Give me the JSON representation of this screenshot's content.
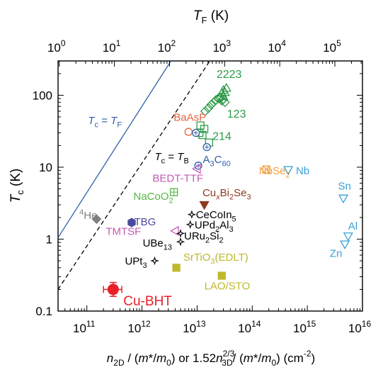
{
  "chart_data": {
    "type": "scatter",
    "x_scale": "log",
    "y_scale": "log",
    "xlim": [
      30000000000.0,
      1e+16
    ],
    "ylim": [
      0.1,
      300
    ],
    "top_xlim": [
      1,
      100000
    ],
    "grid": false,
    "legend": "none",
    "x_ticks": [
      {
        "v": 100000000000.0,
        "base": "10",
        "exp": "11"
      },
      {
        "v": 1000000000000.0,
        "base": "10",
        "exp": "12"
      },
      {
        "v": 10000000000000.0,
        "base": "10",
        "exp": "13"
      },
      {
        "v": 100000000000000.0,
        "base": "10",
        "exp": "14"
      },
      {
        "v": 1000000000000000.0,
        "base": "10",
        "exp": "15"
      },
      {
        "v": 1e+16,
        "base": "10",
        "exp": "16"
      }
    ],
    "top_ticks": [
      {
        "v": 1,
        "base": "10",
        "exp": "0"
      },
      {
        "v": 10,
        "base": "10",
        "exp": "1"
      },
      {
        "v": 100,
        "base": "10",
        "exp": "2"
      },
      {
        "v": 1000,
        "base": "10",
        "exp": "3"
      },
      {
        "v": 10000,
        "base": "10",
        "exp": "4"
      },
      {
        "v": 100000,
        "base": "10",
        "exp": "5"
      }
    ],
    "y_ticks": [
      {
        "v": 0.1,
        "label": "0.1"
      },
      {
        "v": 1,
        "label": "1"
      },
      {
        "v": 10,
        "label": "10"
      },
      {
        "v": 100,
        "label": "100"
      }
    ],
    "xlabel": {
      "n": "n",
      "sub1": "2D",
      "a": " / (",
      "m": "m",
      "b": "*/",
      "m0": "m",
      "sub0": "0",
      "c": ") or 1.52",
      "n2": "n",
      "sup": "2/3",
      "sub3": "3D",
      "d": "/ (",
      "m_b": "m",
      "e": "*/",
      "m0_b": "m",
      "sub0_b": "0",
      "f": ") (cm",
      "sup2": "-2",
      "g": ")"
    },
    "ylabel": {
      "t": "T",
      "sub": "c",
      "unit": " (K)"
    },
    "top_label": {
      "t": "T",
      "sub": "F",
      "unit": " (K)"
    },
    "lines": [
      {
        "lbl_t": "T",
        "lbl_sub": "c",
        "eq": " = ",
        "rhs_t": "T",
        "rhs_sub": "F",
        "color": "#2f5fa8",
        "dash": "none",
        "x0": 30000000000.0,
        "y0": 1.05,
        "x1": 3350000000000.0,
        "y1": 300
      },
      {
        "lbl_t": "T",
        "lbl_sub": "c",
        "eq": " = ",
        "rhs_t": "T",
        "rhs_sub": "B",
        "color": "#000000",
        "dash": "6,4",
        "x0": 30000000000.0,
        "y0": 0.2,
        "x1": 17000000000000.0,
        "y1": 300
      }
    ],
    "series": [
      {
        "name": "2223",
        "color": "#2e9a48",
        "marker": "triangle-up-open",
        "points": [
          [
            28000000000000.0,
            108
          ],
          [
            30000000000000.0,
            118
          ],
          [
            32000000000000.0,
            110
          ],
          [
            34000000000000.0,
            126
          ],
          [
            30000000000000.0,
            96
          ]
        ]
      },
      {
        "name": "123",
        "color": "#2e9a48",
        "marker": "diamond-open",
        "points": [
          [
            14000000000000.0,
            60
          ],
          [
            16000000000000.0,
            66
          ],
          [
            18000000000000.0,
            74
          ],
          [
            20000000000000.0,
            80
          ],
          [
            22000000000000.0,
            86
          ],
          [
            24000000000000.0,
            90
          ],
          [
            26000000000000.0,
            92
          ],
          [
            28000000000000.0,
            84
          ],
          [
            30000000000000.0,
            88
          ],
          [
            32000000000000.0,
            80
          ]
        ]
      },
      {
        "name": "214",
        "color": "#2e9a48",
        "marker": "square-open",
        "points": [
          [
            11500000000000.0,
            38
          ],
          [
            13500000000000.0,
            34
          ],
          [
            16500000000000.0,
            22
          ],
          [
            11000000000000.0,
            30
          ],
          [
            12500000000000.0,
            28
          ]
        ]
      },
      {
        "name": "BaAsP",
        "color": "#e8623d",
        "marker": "circle-open",
        "points": [
          [
            7000000000000.0,
            31
          ]
        ]
      },
      {
        "name": "",
        "color": "#2f5fa8",
        "marker": "circle-plus",
        "points": [
          [
            9500000000000.0,
            30
          ],
          [
            10500000000000.0,
            10.5
          ]
        ]
      },
      {
        "name": "A₃C₆₀",
        "color": "#2f5fa8",
        "marker": "circle-plus",
        "points": [
          [
            15000000000000.0,
            19
          ]
        ]
      },
      {
        "name": "BEDT-TTF",
        "color": "#c45bb4",
        "marker": "triangle-left-open",
        "points": [
          [
            10000000000000.0,
            9.5
          ]
        ]
      },
      {
        "name": "NbSe₂",
        "color": "#f0a040",
        "marker": "square-x",
        "points": [
          [
            180000000000000.0,
            9.3
          ]
        ]
      },
      {
        "name": "Nb",
        "color": "#3aa0d8",
        "marker": "triangle-down-open",
        "points": [
          [
            450000000000000.0,
            9.2
          ]
        ]
      },
      {
        "name": "NaCoO₂",
        "color": "#58b546",
        "marker": "square-plus",
        "points": [
          [
            3800000000000.0,
            4.5
          ]
        ]
      },
      {
        "name": "CuₓBi₂Se₃",
        "color": "#8b3a1f",
        "marker": "triangle-down-filled",
        "points": [
          [
            13500000000000.0,
            3.0
          ]
        ]
      },
      {
        "name": "Sn",
        "color": "#3aa0d8",
        "marker": "triangle-down-open",
        "points": [
          [
            4500000000000000.0,
            3.7
          ]
        ]
      },
      {
        "name": "⁴He",
        "color": "#808080",
        "marker": "diamond-filled",
        "points": [
          [
            150000000000.0,
            1.9
          ]
        ]
      },
      {
        "name": "TBG",
        "color": "#4a4aa0",
        "marker": "hexagon-filled",
        "points": [
          [
            650000000000.0,
            1.7
          ]
        ]
      },
      {
        "name": "CeCoIn₅",
        "color": "#000000",
        "marker": "star4-open",
        "points": [
          [
            8000000000000.0,
            2.2
          ]
        ]
      },
      {
        "name": "UPd₂Al₃",
        "color": "#000000",
        "marker": "star4-open",
        "points": [
          [
            7500000000000.0,
            1.6
          ]
        ]
      },
      {
        "name": "TMTSF",
        "color": "#c45bb4",
        "marker": "triangle-left-open",
        "points": [
          [
            4000000000000.0,
            1.3
          ]
        ]
      },
      {
        "name": "URu₂Si₂",
        "color": "#000000",
        "marker": "star4-open",
        "points": [
          [
            5000000000000.0,
            1.2
          ]
        ]
      },
      {
        "name": "UBe₁₃",
        "color": "#000000",
        "marker": "star4-open",
        "points": [
          [
            5000000000000.0,
            0.92
          ]
        ]
      },
      {
        "name": "Al",
        "color": "#3aa0d8",
        "marker": "triangle-down-open",
        "points": [
          [
            5500000000000000.0,
            1.1
          ]
        ]
      },
      {
        "name": "Zn",
        "color": "#3aa0d8",
        "marker": "triangle-down-open",
        "points": [
          [
            4800000000000000.0,
            0.85
          ]
        ]
      },
      {
        "name": "SrTiO₃(EDLT)",
        "color": "#bfb82b",
        "marker": "square-filled",
        "points": [
          [
            4200000000000.0,
            0.4
          ]
        ]
      },
      {
        "name": "UPt₃",
        "color": "#000000",
        "marker": "star4-open",
        "points": [
          [
            1700000000000.0,
            0.5
          ]
        ]
      },
      {
        "name": "LAO/STO",
        "color": "#bfb82b",
        "marker": "square-filled",
        "points": [
          [
            28000000000000.0,
            0.31
          ]
        ]
      },
      {
        "name": "Cu-BHT",
        "color": "#e8202a",
        "marker": "circle-filled-err",
        "points": [
          [
            300000000000.0,
            0.2
          ]
        ],
        "xerr": [
          200000000000.0,
          430000000000.0
        ],
        "yerr": [
          0.16,
          0.25
        ]
      }
    ],
    "labels": [
      {
        "name": "tc-tf",
        "x": 105000000000.0,
        "y": 40,
        "color": "#2f5fa8",
        "size": 15,
        "parts": [
          [
            "T",
            "it"
          ],
          [
            "c",
            "sub"
          ],
          [
            " = ",
            "n"
          ],
          [
            "T",
            "it"
          ],
          [
            "F",
            "sub"
          ]
        ]
      },
      {
        "name": "tc-tb",
        "x": 1700000000000.0,
        "y": 12.5,
        "color": "#000000",
        "size": 15,
        "parts": [
          [
            "T",
            "it"
          ],
          [
            "c",
            "sub"
          ],
          [
            " = ",
            "n"
          ],
          [
            "T",
            "it"
          ],
          [
            "B",
            "sub"
          ]
        ]
      },
      {
        "name": "2223",
        "x": 22500000000000.0,
        "y": 175,
        "color": "#2e9a48",
        "size": 16,
        "parts": [
          [
            "2223",
            "n"
          ]
        ]
      },
      {
        "name": "123",
        "x": 35000000000000.0,
        "y": 49,
        "color": "#2e9a48",
        "size": 16,
        "parts": [
          [
            "123",
            "n"
          ]
        ]
      },
      {
        "name": "214",
        "x": 19000000000000.0,
        "y": 24,
        "color": "#2e9a48",
        "size": 16,
        "parts": [
          [
            "214",
            "n"
          ]
        ]
      },
      {
        "name": "BaAsP",
        "x": 3750000000000.0,
        "y": 44,
        "color": "#e8623d",
        "size": 15,
        "parts": [
          [
            "BaAsP",
            "n"
          ]
        ]
      },
      {
        "name": "A3C60",
        "x": 12700000000000.0,
        "y": 11.5,
        "color": "#2f5fa8",
        "size": 15,
        "parts": [
          [
            "A",
            "n"
          ],
          [
            "3",
            "sub"
          ],
          [
            "C",
            "n"
          ],
          [
            "60",
            "sub"
          ]
        ]
      },
      {
        "name": "BEDT-TTF",
        "x": 1550000000000.0,
        "y": 6.3,
        "color": "#c45bb4",
        "size": 15,
        "parts": [
          [
            "BEDT-TTF",
            "n"
          ]
        ]
      },
      {
        "name": "NbSe2",
        "x": 133000000000000.0,
        "y": 8.0,
        "color": "#f0a040",
        "size": 15,
        "parts": [
          [
            "NbSe",
            "n"
          ],
          [
            "2",
            "sub"
          ]
        ]
      },
      {
        "name": "Nb",
        "x": 620000000000000.0,
        "y": 8.0,
        "color": "#3aa0d8",
        "size": 15,
        "parts": [
          [
            "Nb",
            "n"
          ]
        ]
      },
      {
        "name": "NaCoO2",
        "x": 700000000000.0,
        "y": 3.5,
        "color": "#58b546",
        "size": 15,
        "parts": [
          [
            "NaCoO",
            "n"
          ],
          [
            "2",
            "sub"
          ]
        ]
      },
      {
        "name": "CuxBi2Se3",
        "x": 12500000000000.0,
        "y": 3.95,
        "color": "#8b3a1f",
        "size": 15,
        "parts": [
          [
            "Cu",
            "n"
          ],
          [
            "x",
            "subit"
          ],
          [
            "Bi",
            "n"
          ],
          [
            "2",
            "sub"
          ],
          [
            "Se",
            "n"
          ],
          [
            "3",
            "sub"
          ]
        ]
      },
      {
        "name": "Sn",
        "x": 3600000000000000.0,
        "y": 4.9,
        "color": "#3aa0d8",
        "size": 15,
        "parts": [
          [
            "Sn",
            "n"
          ]
        ]
      },
      {
        "name": "4He",
        "x": 73000000000.0,
        "y": 1.9,
        "color": "#808080",
        "size": 15,
        "parts": [
          [
            "4",
            "sup"
          ],
          [
            "He",
            "n"
          ]
        ]
      },
      {
        "name": "TBG",
        "x": 720000000000.0,
        "y": 1.55,
        "color": "#4a4aa0",
        "size": 15,
        "parts": [
          [
            "TBG",
            "n"
          ]
        ]
      },
      {
        "name": "CeCoIn5",
        "x": 9500000000000.0,
        "y": 1.95,
        "color": "#000000",
        "size": 15,
        "parts": [
          [
            "CeCoIn",
            "n"
          ],
          [
            "5",
            "sub"
          ]
        ]
      },
      {
        "name": "UPd2Al3",
        "x": 9000000000000.0,
        "y": 1.4,
        "color": "#000000",
        "size": 15,
        "parts": [
          [
            "UPd",
            "n"
          ],
          [
            "2",
            "sub"
          ],
          [
            "Al",
            "n"
          ],
          [
            "3",
            "sub"
          ]
        ]
      },
      {
        "name": "TMTSF",
        "x": 220000000000.0,
        "y": 1.15,
        "color": "#c45bb4",
        "size": 15,
        "parts": [
          [
            "TMTSF",
            "n"
          ]
        ]
      },
      {
        "name": "URu2Si2",
        "x": 5800000000000.0,
        "y": 0.99,
        "color": "#000000",
        "size": 15,
        "parts": [
          [
            "URu",
            "n"
          ],
          [
            "2",
            "sub"
          ],
          [
            "Si",
            "n"
          ],
          [
            "2",
            "sub"
          ]
        ]
      },
      {
        "name": "UBe13",
        "x": 1030000000000.0,
        "y": 0.79,
        "color": "#000000",
        "size": 15,
        "parts": [
          [
            "UBe",
            "n"
          ],
          [
            "13",
            "sub"
          ]
        ]
      },
      {
        "name": "Al",
        "x": 5500000000000000.0,
        "y": 1.35,
        "color": "#3aa0d8",
        "size": 15,
        "parts": [
          [
            "Al",
            "n"
          ]
        ]
      },
      {
        "name": "Zn",
        "x": 2550000000000000.0,
        "y": 0.57,
        "color": "#3aa0d8",
        "size": 15,
        "parts": [
          [
            "Zn",
            "n"
          ]
        ]
      },
      {
        "name": "SrTiO3",
        "x": 5600000000000.0,
        "y": 0.5,
        "color": "#bfb82b",
        "size": 15,
        "parts": [
          [
            "SrTiO",
            "n"
          ],
          [
            "3",
            "sub"
          ],
          [
            "(EDLT)",
            "n"
          ]
        ]
      },
      {
        "name": "UPt3",
        "x": 490000000000.0,
        "y": 0.44,
        "color": "#000000",
        "size": 15,
        "parts": [
          [
            "UPt",
            "n"
          ],
          [
            "3",
            "sub"
          ]
        ]
      },
      {
        "name": "LAO/STO",
        "x": 13500000000000.0,
        "y": 0.2,
        "color": "#bfb82b",
        "size": 15,
        "parts": [
          [
            "LAO/STO",
            "n"
          ]
        ]
      },
      {
        "name": "Cu-BHT",
        "x": 460000000000.0,
        "y": 0.12,
        "color": "#e8202a",
        "size": 19,
        "parts": [
          [
            "Cu-BHT",
            "n"
          ]
        ]
      }
    ]
  }
}
